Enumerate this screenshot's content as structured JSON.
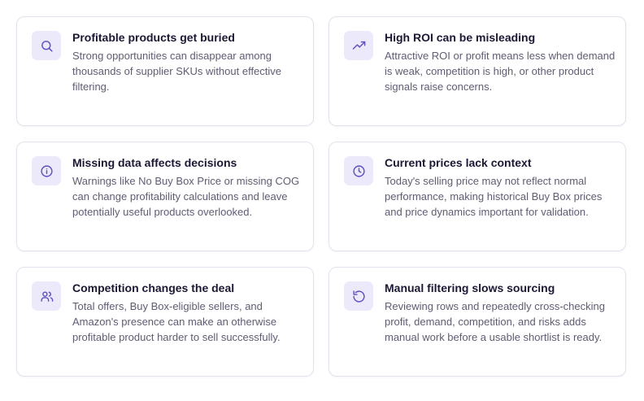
{
  "cards": [
    {
      "icon": "search-icon",
      "title": "Profitable products get buried",
      "description": "Strong opportunities can disappear among thousands of supplier SKUs without effective filtering."
    },
    {
      "icon": "trending-up-icon",
      "title": "High ROI can be misleading",
      "description": "Attractive ROI or profit means less when demand is weak, competition is high, or other product signals raise concerns."
    },
    {
      "icon": "info-icon",
      "title": "Missing data affects decisions",
      "description": "Warnings like No Buy Box Price or missing COG can change profitability calculations and leave potentially useful products overlooked."
    },
    {
      "icon": "clock-icon",
      "title": "Current prices lack context",
      "description": "Today's selling price may not reflect normal performance, making historical Buy Box prices and price dynamics important for validation."
    },
    {
      "icon": "users-icon",
      "title": "Competition changes the deal",
      "description": "Total offers, Buy Box-eligible sellers, and Amazon's presence can make an otherwise profitable product harder to sell successfully."
    },
    {
      "icon": "refresh-icon",
      "title": "Manual filtering slows sourcing",
      "description": "Reviewing rows and repeatedly cross-checking profit, demand, competition, and risks adds manual work before a usable shortlist is ready."
    }
  ],
  "colors": {
    "accent": "#5b4fc2",
    "icon_background": "#ece9fb",
    "card_border": "#e4e1ee",
    "title": "#1b1834",
    "text": "#5f5c72"
  }
}
